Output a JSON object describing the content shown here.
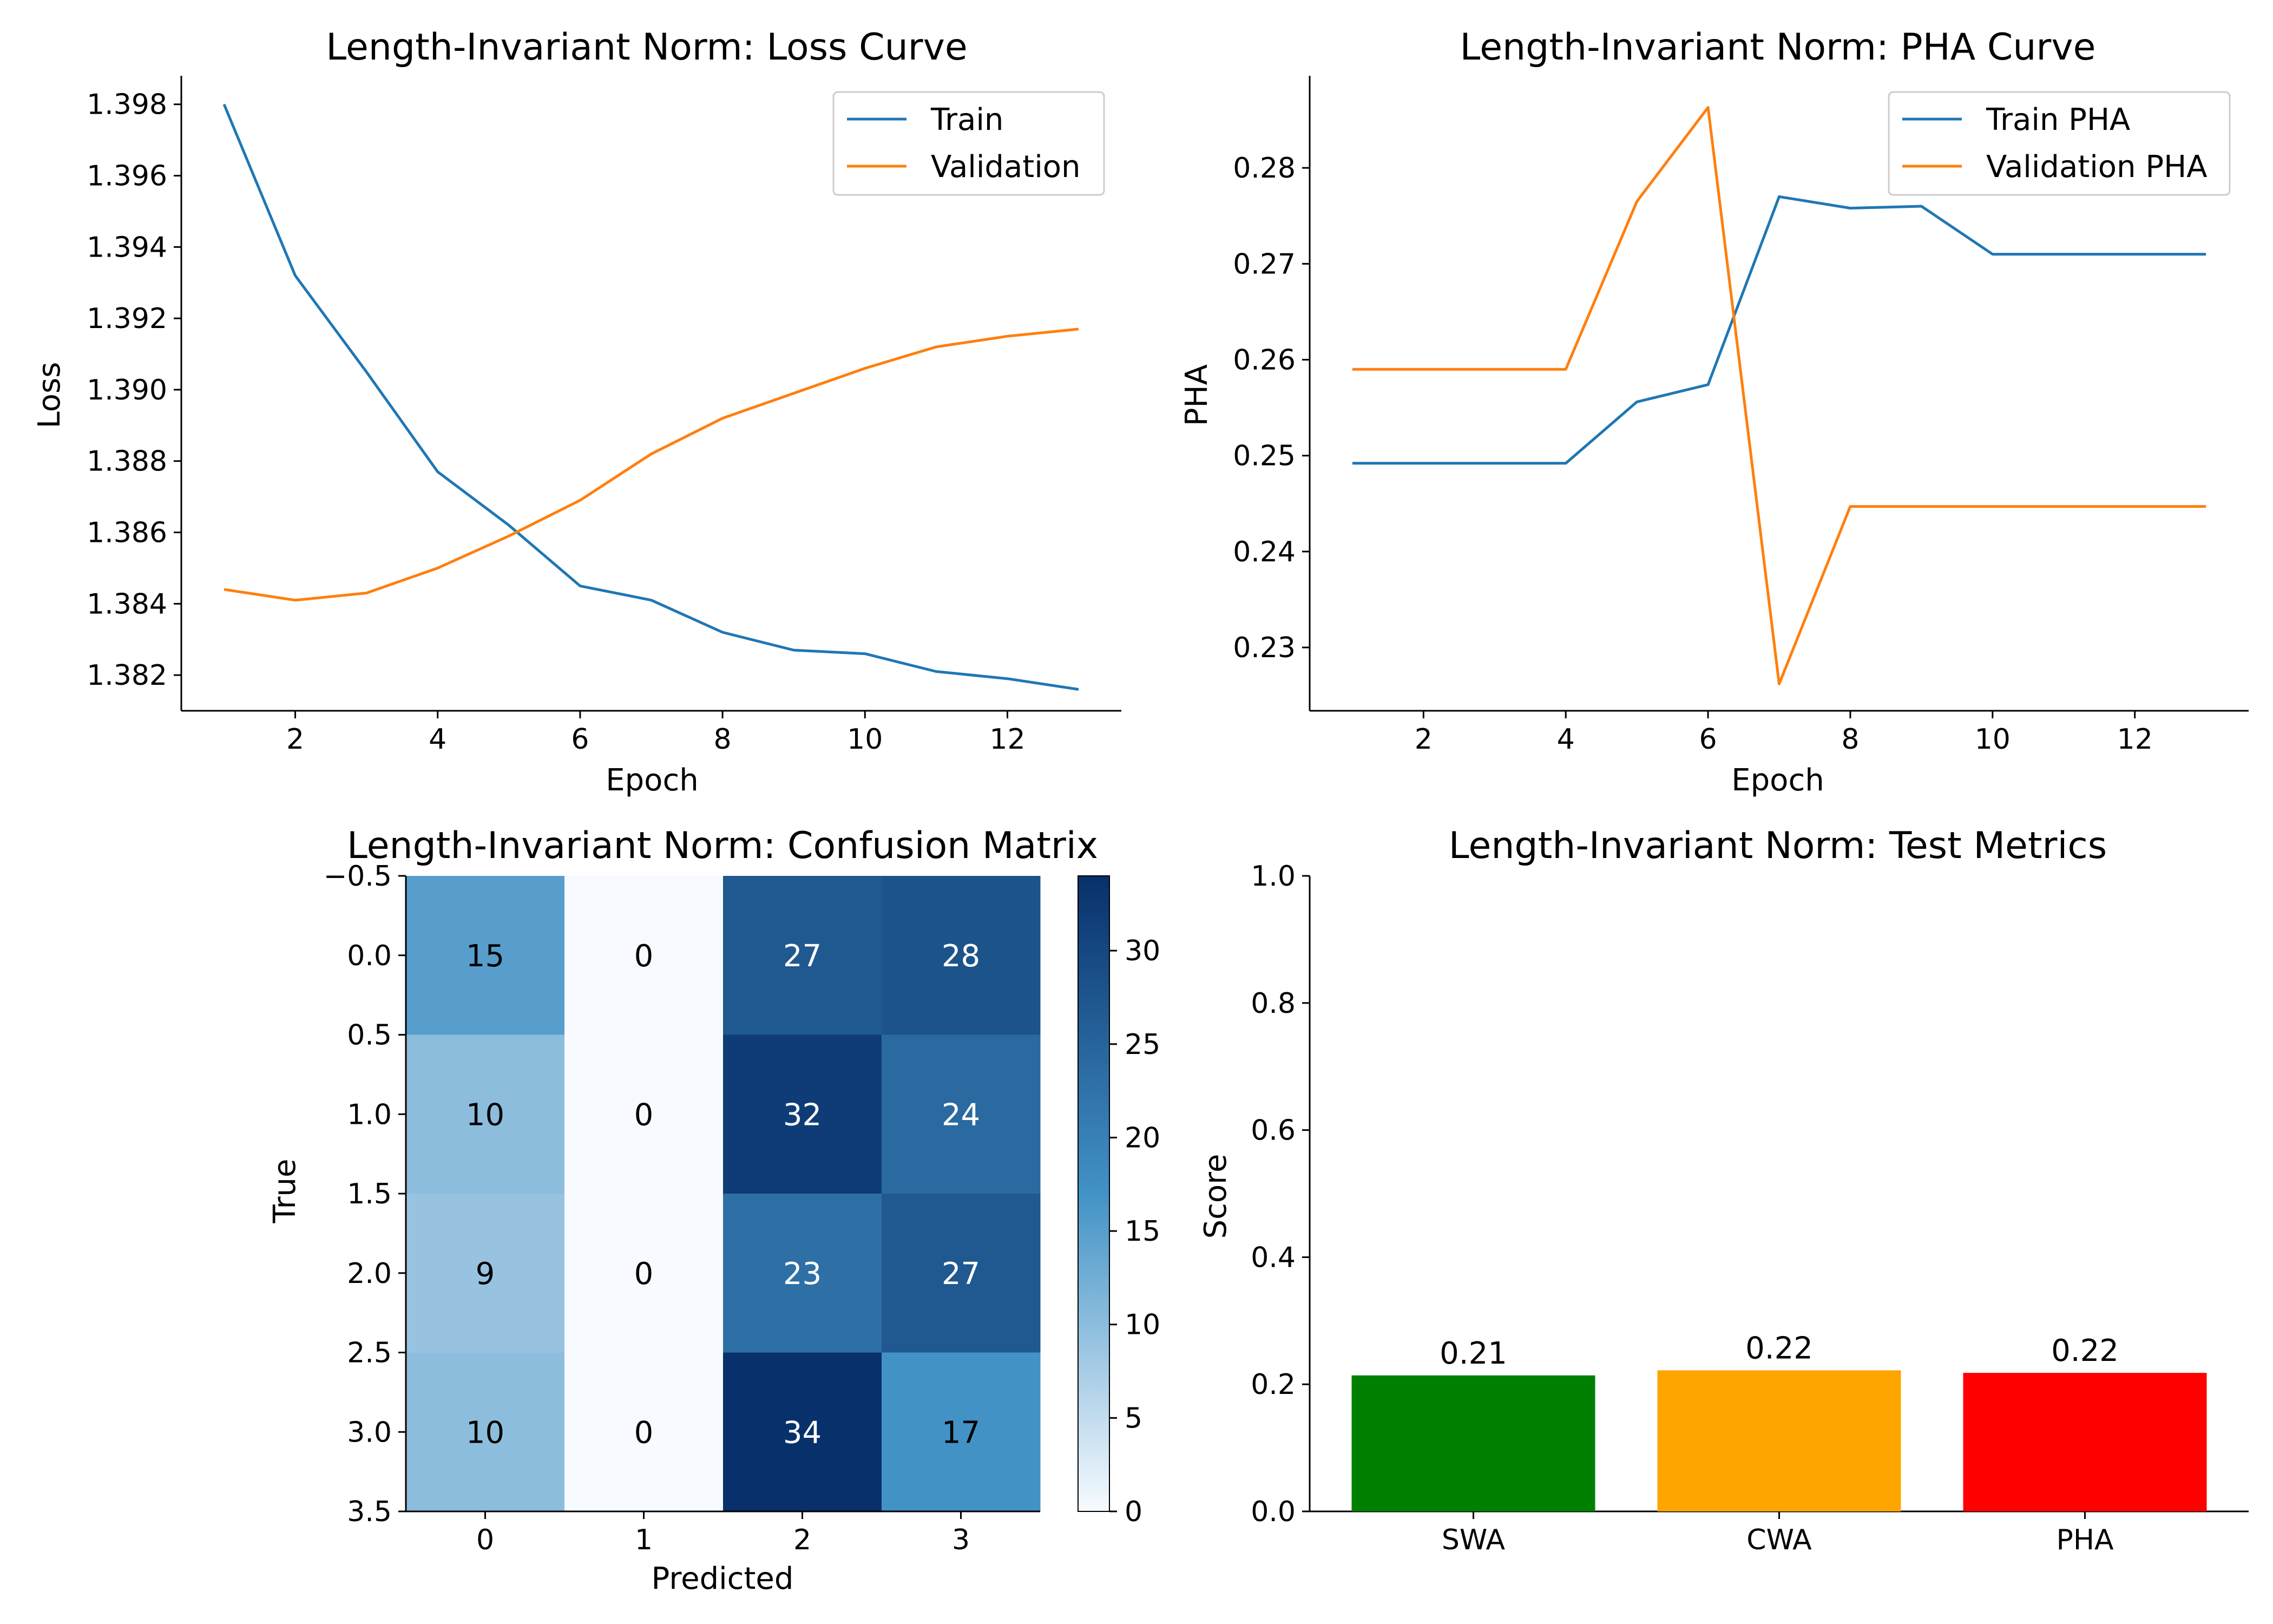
{
  "chart_data": [
    {
      "type": "line",
      "title": "Length-Invariant Norm: Loss Curve",
      "xlabel": "Epoch",
      "ylabel": "Loss",
      "x": [
        1,
        2,
        3,
        4,
        5,
        6,
        7,
        8,
        9,
        10,
        11,
        12,
        13
      ],
      "xlim": [
        0.4,
        13.6
      ],
      "ylim": [
        1.381,
        1.3988
      ],
      "xticks": [
        2,
        4,
        6,
        8,
        10,
        12
      ],
      "yticks": [
        1.382,
        1.384,
        1.386,
        1.388,
        1.39,
        1.392,
        1.394,
        1.396,
        1.398
      ],
      "ytick_labels": [
        "1.382",
        "1.384",
        "1.386",
        "1.388",
        "1.390",
        "1.392",
        "1.394",
        "1.396",
        "1.398"
      ],
      "legend_position": "upper right",
      "series": [
        {
          "name": "Train",
          "color": "#1f77b4",
          "values": [
            1.398,
            1.3932,
            1.3905,
            1.3877,
            1.3862,
            1.3845,
            1.3841,
            1.3832,
            1.3827,
            1.3826,
            1.3821,
            1.3819,
            1.3816
          ]
        },
        {
          "name": "Validation",
          "color": "#ff7f0e",
          "values": [
            1.3844,
            1.3841,
            1.3843,
            1.385,
            1.3859,
            1.3869,
            1.3882,
            1.3892,
            1.3899,
            1.3906,
            1.3912,
            1.3915,
            1.3917
          ]
        }
      ]
    },
    {
      "type": "line",
      "title": "Length-Invariant Norm: PHA Curve",
      "xlabel": "Epoch",
      "ylabel": "PHA",
      "x": [
        1,
        2,
        3,
        4,
        5,
        6,
        7,
        8,
        9,
        10,
        11,
        12,
        13
      ],
      "xlim": [
        0.4,
        13.6
      ],
      "ylim": [
        0.2234,
        0.2896
      ],
      "xticks": [
        2,
        4,
        6,
        8,
        10,
        12
      ],
      "yticks": [
        0.23,
        0.24,
        0.25,
        0.26,
        0.27,
        0.28
      ],
      "ytick_labels": [
        "0.23",
        "0.24",
        "0.25",
        "0.26",
        "0.27",
        "0.28"
      ],
      "legend_position": "upper right",
      "series": [
        {
          "name": "Train PHA",
          "color": "#1f77b4",
          "values": [
            0.2492,
            0.2492,
            0.2492,
            0.2492,
            0.2556,
            0.2574,
            0.277,
            0.2758,
            0.276,
            0.271,
            0.271,
            0.271,
            0.271
          ]
        },
        {
          "name": "Validation PHA",
          "color": "#ff7f0e",
          "values": [
            0.259,
            0.259,
            0.259,
            0.259,
            0.2765,
            0.2863,
            0.2262,
            0.2447,
            0.2447,
            0.2447,
            0.2447,
            0.2447,
            0.2447
          ]
        }
      ]
    },
    {
      "type": "heatmap",
      "title": "Length-Invariant Norm: Confusion Matrix",
      "xlabel": "Predicted",
      "ylabel": "True",
      "x_tick_labels": [
        "0",
        "1",
        "2",
        "3"
      ],
      "y_tick_labels": [
        "−0.5",
        "0.0",
        "0.5",
        "1.0",
        "1.5",
        "2.0",
        "2.5",
        "3.0",
        "3.5"
      ],
      "colormap": "Blues",
      "colorbar_range": [
        0,
        34
      ],
      "colorbar_ticks": [
        "0",
        "5",
        "10",
        "15",
        "20",
        "25",
        "30"
      ],
      "matrix": [
        [
          15,
          0,
          27,
          28
        ],
        [
          10,
          0,
          32,
          24
        ],
        [
          9,
          0,
          23,
          27
        ],
        [
          10,
          0,
          34,
          17
        ]
      ]
    },
    {
      "type": "bar",
      "title": "Length-Invariant Norm: Test Metrics",
      "xlabel": "",
      "ylabel": "Score",
      "categories": [
        "SWA",
        "CWA",
        "PHA"
      ],
      "values": [
        0.214,
        0.222,
        0.218
      ],
      "value_labels": [
        "0.21",
        "0.22",
        "0.22"
      ],
      "colors": [
        "#008000",
        "#ffa500",
        "#ff0000"
      ],
      "ylim": [
        0,
        1.0
      ],
      "yticks": [
        "0.0",
        "0.2",
        "0.4",
        "0.6",
        "0.8",
        "1.0"
      ]
    }
  ]
}
